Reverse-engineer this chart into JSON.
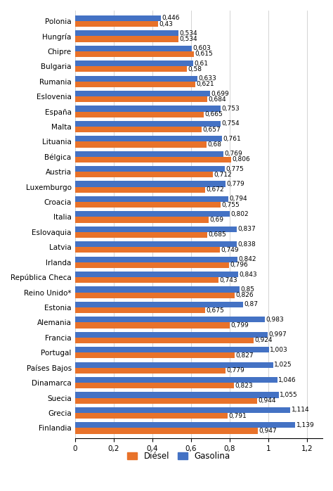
{
  "countries": [
    "Polonia",
    "Hungría",
    "Chipre",
    "Bulgaria",
    "Rumania",
    "Eslovenia",
    "España",
    "Malta",
    "Lituania",
    "Bélgica",
    "Austria",
    "Luxemburgo",
    "Croacia",
    "Italia",
    "Eslovaquia",
    "Latvia",
    "Irlanda",
    "República Checa",
    "Reino Unido*",
    "Estonia",
    "Alemania",
    "Francia",
    "Portugal",
    "Países Bajos",
    "Dinamarca",
    "Suecia",
    "Grecia",
    "Finlandia"
  ],
  "diesel": [
    0.43,
    0.534,
    0.615,
    0.58,
    0.621,
    0.684,
    0.665,
    0.657,
    0.68,
    0.806,
    0.712,
    0.672,
    0.755,
    0.69,
    0.685,
    0.749,
    0.796,
    0.743,
    0.826,
    0.675,
    0.799,
    0.924,
    0.827,
    0.779,
    0.823,
    0.944,
    0.791,
    0.947
  ],
  "gasoline": [
    0.446,
    0.534,
    0.603,
    0.61,
    0.633,
    0.699,
    0.753,
    0.754,
    0.761,
    0.769,
    0.775,
    0.779,
    0.794,
    0.802,
    0.837,
    0.838,
    0.842,
    0.843,
    0.85,
    0.87,
    0.983,
    0.997,
    1.003,
    1.025,
    1.046,
    1.055,
    1.114,
    1.139
  ],
  "color_diesel": "#E8722A",
  "color_gasoline": "#4472C4",
  "xticks": [
    0,
    0.2,
    0.4,
    0.6,
    0.8,
    1.0,
    1.2
  ],
  "xtick_labels": [
    "0",
    "0,2",
    "0,4",
    "0,6",
    "0,8",
    "1",
    "1,2"
  ],
  "xlim": [
    0,
    1.28
  ],
  "legend_diesel": "Diésel",
  "legend_gasoline": "Gasolina",
  "bar_height": 0.38,
  "label_fontsize": 6.5,
  "tick_fontsize": 7.5,
  "legend_fontsize": 8.5,
  "background_color": "#FFFFFF"
}
